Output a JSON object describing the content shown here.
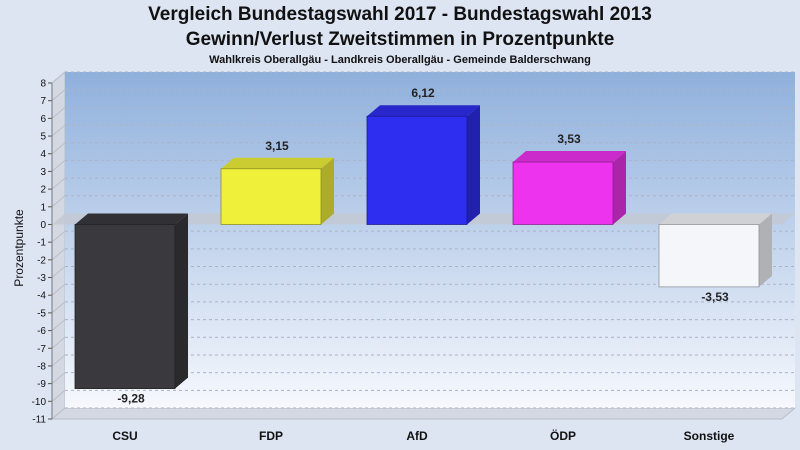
{
  "title": "Vergleich Bundestagswahl 2017 - Bundestagswahl 2013",
  "subtitle": "Gewinn/Verlust Zweitstimmen in Prozentpunkte",
  "caption": "Wahlkreis Oberallgäu - Landkreis Oberallgäu - Gemeinde Balderschwang",
  "chart_data": {
    "type": "bar",
    "title": "Vergleich Bundestagswahl 2017 - Bundestagswahl 2013",
    "subtitle": "Gewinn/Verlust Zweitstimmen in Prozentpunkte",
    "ylabel": "Prozentpunkte",
    "xlabel": "",
    "ylim": [
      -11,
      8
    ],
    "yticks": [
      8,
      7,
      6,
      5,
      4,
      3,
      2,
      1,
      0,
      -1,
      -2,
      -3,
      -4,
      -5,
      -6,
      -7,
      -8,
      -9,
      -10,
      -11
    ],
    "grid": true,
    "categories": [
      "CSU",
      "FDP",
      "AfD",
      "ÖDP",
      "Sonstige"
    ],
    "values": [
      -9.28,
      3.15,
      6.12,
      3.53,
      -3.53
    ],
    "value_labels": [
      "-9,28",
      "3,15",
      "6,12",
      "3,53",
      "-3,53"
    ],
    "colors": [
      "#3a3a3e",
      "#eef03a",
      "#2e2ef0",
      "#ee33ee",
      "#f5f6fa"
    ]
  }
}
